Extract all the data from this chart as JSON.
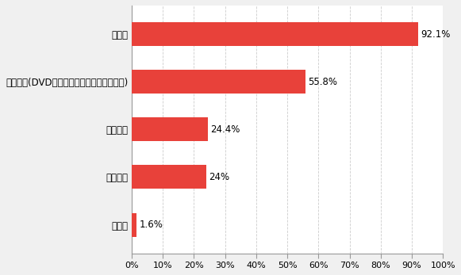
{
  "categories": [
    "その他",
    "カーナビ",
    "パソコン",
    "録画機器(DVD・ブルーレイレコーダーなど)",
    "テレビ"
  ],
  "values": [
    1.6,
    24.0,
    24.4,
    55.8,
    92.1
  ],
  "labels": [
    "1.6%",
    "24%",
    "24.4%",
    "55.8%",
    "92.1%"
  ],
  "bar_color": "#e8413a",
  "grid_color": "#cccccc",
  "background_color": "#f0f0f0",
  "plot_bg_color": "#ffffff",
  "xlim": [
    0,
    100
  ],
  "xticks": [
    0,
    10,
    20,
    30,
    40,
    50,
    60,
    70,
    80,
    90,
    100
  ],
  "xtick_labels": [
    "0%",
    "10%",
    "20%",
    "30%",
    "40%",
    "50%",
    "60%",
    "70%",
    "80%",
    "90%",
    "100%"
  ],
  "fontsize_labels": 8.5,
  "fontsize_ticks": 8,
  "fontsize_values": 8.5
}
